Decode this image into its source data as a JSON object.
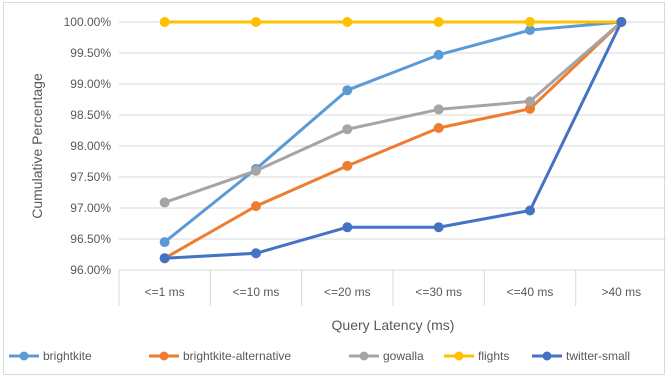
{
  "chart_data": {
    "type": "line",
    "title": "",
    "xlabel": "Query Latency (ms)",
    "ylabel": "Cumulative Percentage",
    "categories": [
      "<=1 ms",
      "<=10 ms",
      "<=20 ms",
      "<=30 ms",
      "<=40 ms",
      ">40 ms"
    ],
    "ylim": [
      96.0,
      100.0
    ],
    "yticks": [
      "96.00%",
      "96.50%",
      "97.00%",
      "97.50%",
      "98.00%",
      "98.50%",
      "99.00%",
      "99.50%",
      "100.00%"
    ],
    "grid": "horizontal",
    "legend_position": "bottom",
    "series": [
      {
        "name": "brightkite",
        "color": "#5B9BD5",
        "values": [
          96.45,
          97.63,
          98.9,
          99.47,
          99.87,
          100.0
        ]
      },
      {
        "name": "brightkite-alternative",
        "color": "#ED7D31",
        "values": [
          96.19,
          97.03,
          97.68,
          98.29,
          98.6,
          100.0
        ]
      },
      {
        "name": "gowalla",
        "color": "#A5A5A5",
        "values": [
          97.09,
          97.6,
          98.27,
          98.59,
          98.72,
          100.0
        ]
      },
      {
        "name": "flights",
        "color": "#FFC000",
        "values": [
          100.0,
          100.0,
          100.0,
          100.0,
          100.0,
          100.0
        ]
      },
      {
        "name": "twitter-small",
        "color": "#4472C4",
        "values": [
          96.19,
          96.27,
          96.69,
          96.69,
          96.96,
          100.0
        ]
      }
    ]
  }
}
